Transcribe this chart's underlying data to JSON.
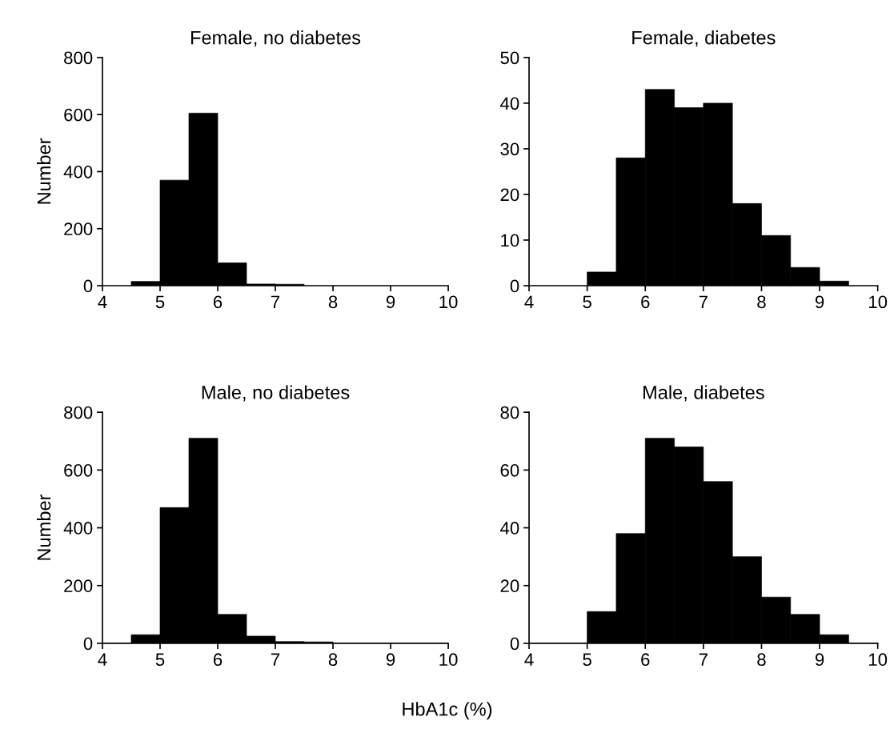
{
  "chart_data": [
    {
      "type": "histogram",
      "title": "Female, no diabetes",
      "ylabel": "Number",
      "bins": [
        4.5,
        5,
        5.5,
        6,
        6.5,
        7,
        7.5
      ],
      "values": [
        15,
        370,
        605,
        80,
        6,
        5
      ],
      "color": "#000000",
      "xlim": [
        4,
        10
      ],
      "xticks": [
        4,
        5,
        6,
        7,
        8,
        9,
        10
      ],
      "ylim": [
        0,
        800
      ],
      "yticks": [
        0,
        200,
        400,
        600,
        800
      ],
      "grid": false
    },
    {
      "type": "histogram",
      "title": "Female, diabetes",
      "bins": [
        5,
        5.5,
        6,
        6.5,
        7,
        7.5,
        8,
        8.5,
        9,
        9.5
      ],
      "values": [
        3,
        28,
        43,
        39,
        40,
        18,
        11,
        4,
        1
      ],
      "color": "#000000",
      "xlim": [
        4,
        10
      ],
      "xticks": [
        4,
        5,
        6,
        7,
        8,
        9,
        10
      ],
      "ylim": [
        0,
        50
      ],
      "yticks": [
        0,
        10,
        20,
        30,
        40,
        50
      ],
      "grid": false
    },
    {
      "type": "histogram",
      "title": "Male, no diabetes",
      "ylabel": "Number",
      "xlabel": "HbA1c (%)",
      "bins": [
        4.5,
        5,
        5.5,
        6,
        6.5,
        7,
        7.5,
        8
      ],
      "values": [
        30,
        470,
        710,
        100,
        25,
        6,
        5
      ],
      "color": "#000000",
      "xlim": [
        4,
        10
      ],
      "xticks": [
        4,
        5,
        6,
        7,
        8,
        9,
        10
      ],
      "ylim": [
        0,
        800
      ],
      "yticks": [
        0,
        200,
        400,
        600,
        800
      ],
      "grid": false
    },
    {
      "type": "histogram",
      "title": "Male, diabetes",
      "bins": [
        5,
        5.5,
        6,
        6.5,
        7,
        7.5,
        8,
        8.5,
        9,
        9.5
      ],
      "values": [
        11,
        38,
        71,
        68,
        56,
        30,
        16,
        10,
        3
      ],
      "color": "#000000",
      "xlim": [
        4,
        10
      ],
      "xticks": [
        4,
        5,
        6,
        7,
        8,
        9,
        10
      ],
      "ylim": [
        0,
        80
      ],
      "yticks": [
        0,
        20,
        40,
        60,
        80
      ],
      "grid": false
    }
  ]
}
